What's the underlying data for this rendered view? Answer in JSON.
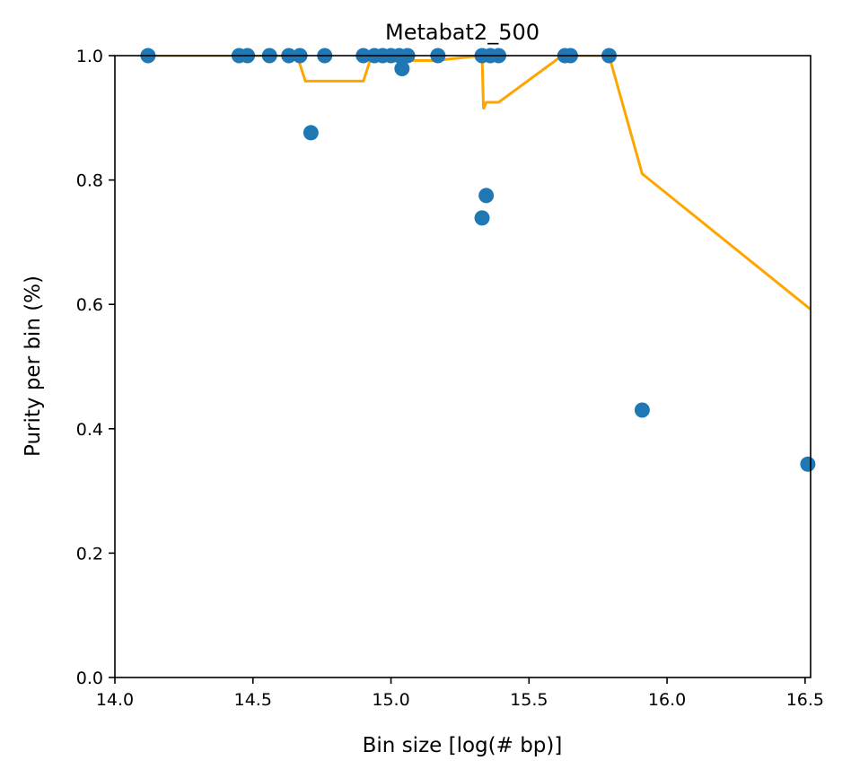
{
  "chart_data": {
    "type": "scatter",
    "title": "Metabat2_500",
    "xlabel": "Bin size [log(# bp)]",
    "ylabel": "Purity per bin (%)",
    "xlim": [
      14.0,
      16.52
    ],
    "ylim": [
      0.0,
      1.0
    ],
    "x_ticks": [
      "14.0",
      "14.5",
      "15.0",
      "15.5",
      "16.0",
      "16.5"
    ],
    "y_ticks": [
      "0.0",
      "0.2",
      "0.4",
      "0.6",
      "0.8",
      "1.0"
    ],
    "grid": false,
    "series": [
      {
        "kind": "scatter",
        "color": "#1f77b4",
        "points": [
          [
            14.12,
            1.0
          ],
          [
            14.45,
            1.0
          ],
          [
            14.48,
            1.0
          ],
          [
            14.56,
            1.0
          ],
          [
            14.63,
            1.0
          ],
          [
            14.67,
            1.0
          ],
          [
            14.71,
            0.876
          ],
          [
            14.76,
            1.0
          ],
          [
            14.9,
            1.0
          ],
          [
            14.94,
            1.0
          ],
          [
            14.97,
            1.0
          ],
          [
            15.0,
            1.0
          ],
          [
            15.03,
            1.0
          ],
          [
            15.04,
            0.979
          ],
          [
            15.06,
            1.0
          ],
          [
            15.17,
            1.0
          ],
          [
            15.33,
            1.0
          ],
          [
            15.33,
            0.739
          ],
          [
            15.345,
            0.775
          ],
          [
            15.36,
            1.0
          ],
          [
            15.39,
            1.0
          ],
          [
            15.63,
            1.0
          ],
          [
            15.65,
            1.0
          ],
          [
            15.79,
            1.0
          ],
          [
            15.91,
            0.43
          ],
          [
            16.51,
            0.343
          ]
        ]
      },
      {
        "kind": "line",
        "color": "#ffa500",
        "points": [
          [
            14.12,
            1.0
          ],
          [
            14.66,
            1.0
          ],
          [
            14.69,
            0.959
          ],
          [
            14.9,
            0.959
          ],
          [
            14.93,
            1.0
          ],
          [
            15.05,
            1.0
          ],
          [
            15.06,
            0.992
          ],
          [
            15.17,
            0.992
          ],
          [
            15.2,
            0.994
          ],
          [
            15.33,
            1.0
          ],
          [
            15.335,
            0.914
          ],
          [
            15.345,
            0.925
          ],
          [
            15.39,
            0.925
          ],
          [
            15.62,
            1.0
          ],
          [
            15.79,
            1.0
          ],
          [
            15.91,
            0.81
          ],
          [
            16.52,
            0.592
          ]
        ]
      }
    ]
  }
}
